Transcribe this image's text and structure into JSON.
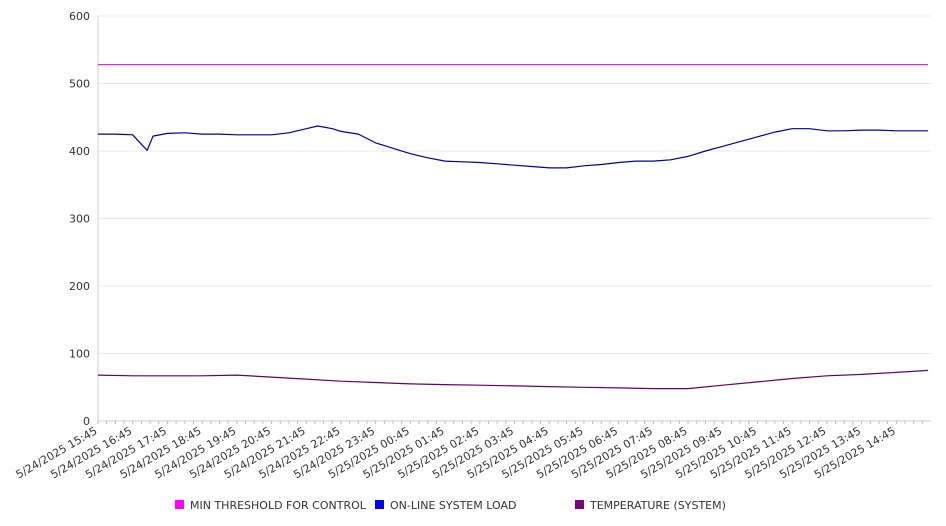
{
  "chart_data": {
    "type": "line",
    "title": "",
    "xlabel": "",
    "ylabel": "",
    "ylim": [
      0,
      600
    ],
    "yticks": [
      "0",
      "100",
      "200",
      "300",
      "400",
      "500",
      "600"
    ],
    "grid": "horizontal",
    "legend_position": "bottom",
    "categories": [
      "5/24/2025 15:45",
      "5/24/2025 16:45",
      "5/24/2025 17:45",
      "5/24/2025 18:45",
      "5/24/2025 19:45",
      "5/24/2025 20:45",
      "5/24/2025 21:45",
      "5/24/2025 22:45",
      "5/24/2025 23:45",
      "5/25/2025 00:45",
      "5/25/2025 01:45",
      "5/25/2025 02:45",
      "5/25/2025 03:45",
      "5/25/2025 04:45",
      "5/25/2025 05:45",
      "5/25/2025 06:45",
      "5/25/2025 07:45",
      "5/25/2025 08:45",
      "5/25/2025 09:45",
      "5/25/2025 10:45",
      "5/25/2025 11:45",
      "5/25/2025 12:45",
      "5/25/2025 13:45",
      "5/25/2025 14:45"
    ],
    "x_end": "5/25/2025 15:40",
    "series": [
      {
        "name": "MIN THRESHOLD FOR CONTROL",
        "color": "#cc33cc",
        "legend_color": "#ff00ff",
        "points": [
          [
            "5/24/2025 15:45",
            528
          ],
          [
            "5/25/2025 15:40",
            528
          ]
        ]
      },
      {
        "name": "ON-LINE SYSTEM LOAD",
        "color": "#00009a",
        "legend_color": "#0000ff",
        "points": [
          [
            "5/24/2025 15:45",
            425
          ],
          [
            "5/24/2025 16:15",
            425
          ],
          [
            "5/24/2025 16:45",
            424
          ],
          [
            "5/24/2025 17:00",
            410
          ],
          [
            "5/24/2025 17:10",
            401
          ],
          [
            "5/24/2025 17:20",
            422
          ],
          [
            "5/24/2025 17:45",
            426
          ],
          [
            "5/24/2025 18:15",
            427
          ],
          [
            "5/24/2025 18:45",
            425
          ],
          [
            "5/24/2025 19:15",
            425
          ],
          [
            "5/24/2025 19:45",
            424
          ],
          [
            "5/24/2025 20:15",
            424
          ],
          [
            "5/24/2025 20:45",
            424
          ],
          [
            "5/24/2025 21:15",
            427
          ],
          [
            "5/24/2025 21:45",
            433
          ],
          [
            "5/24/2025 22:05",
            437
          ],
          [
            "5/24/2025 22:30",
            433
          ],
          [
            "5/24/2025 22:45",
            429
          ],
          [
            "5/24/2025 23:15",
            425
          ],
          [
            "5/24/2025 23:45",
            412
          ],
          [
            "5/25/2025 00:15",
            404
          ],
          [
            "5/25/2025 00:45",
            396
          ],
          [
            "5/25/2025 01:15",
            390
          ],
          [
            "5/25/2025 01:45",
            385
          ],
          [
            "5/25/2025 02:15",
            384
          ],
          [
            "5/25/2025 02:45",
            383
          ],
          [
            "5/25/2025 03:15",
            381
          ],
          [
            "5/25/2025 03:45",
            379
          ],
          [
            "5/25/2025 04:15",
            377
          ],
          [
            "5/25/2025 04:45",
            375
          ],
          [
            "5/25/2025 05:15",
            375
          ],
          [
            "5/25/2025 05:45",
            378
          ],
          [
            "5/25/2025 06:15",
            380
          ],
          [
            "5/25/2025 06:45",
            383
          ],
          [
            "5/25/2025 07:15",
            385
          ],
          [
            "5/25/2025 07:45",
            385
          ],
          [
            "5/25/2025 08:15",
            387
          ],
          [
            "5/25/2025 08:45",
            392
          ],
          [
            "5/25/2025 09:15",
            400
          ],
          [
            "5/25/2025 09:45",
            407
          ],
          [
            "5/25/2025 10:15",
            414
          ],
          [
            "5/25/2025 10:45",
            421
          ],
          [
            "5/25/2025 11:15",
            428
          ],
          [
            "5/25/2025 11:45",
            433
          ],
          [
            "5/25/2025 12:15",
            433
          ],
          [
            "5/25/2025 12:45",
            430
          ],
          [
            "5/25/2025 13:15",
            430
          ],
          [
            "5/25/2025 13:45",
            431
          ],
          [
            "5/25/2025 14:15",
            431
          ],
          [
            "5/25/2025 14:45",
            430
          ],
          [
            "5/25/2025 15:15",
            430
          ],
          [
            "5/25/2025 15:40",
            430
          ]
        ]
      },
      {
        "name": "TEMPERATURE (SYSTEM)",
        "color": "#660066",
        "legend_color": "#800080",
        "points": [
          [
            "5/24/2025 15:45",
            68
          ],
          [
            "5/24/2025 16:45",
            67
          ],
          [
            "5/24/2025 17:45",
            67
          ],
          [
            "5/24/2025 18:45",
            67
          ],
          [
            "5/24/2025 19:45",
            68
          ],
          [
            "5/24/2025 20:45",
            65
          ],
          [
            "5/24/2025 21:45",
            62
          ],
          [
            "5/24/2025 22:45",
            59
          ],
          [
            "5/24/2025 23:45",
            57
          ],
          [
            "5/25/2025 00:45",
            55
          ],
          [
            "5/25/2025 01:45",
            54
          ],
          [
            "5/25/2025 02:45",
            53
          ],
          [
            "5/25/2025 03:45",
            52
          ],
          [
            "5/25/2025 04:45",
            51
          ],
          [
            "5/25/2025 05:45",
            50
          ],
          [
            "5/25/2025 06:45",
            49
          ],
          [
            "5/25/2025 07:45",
            48
          ],
          [
            "5/25/2025 08:45",
            48
          ],
          [
            "5/25/2025 09:45",
            53
          ],
          [
            "5/25/2025 10:45",
            58
          ],
          [
            "5/25/2025 11:45",
            63
          ],
          [
            "5/25/2025 12:45",
            67
          ],
          [
            "5/25/2025 13:45",
            69
          ],
          [
            "5/25/2025 14:45",
            72
          ],
          [
            "5/25/2025 15:40",
            75
          ]
        ]
      }
    ]
  }
}
